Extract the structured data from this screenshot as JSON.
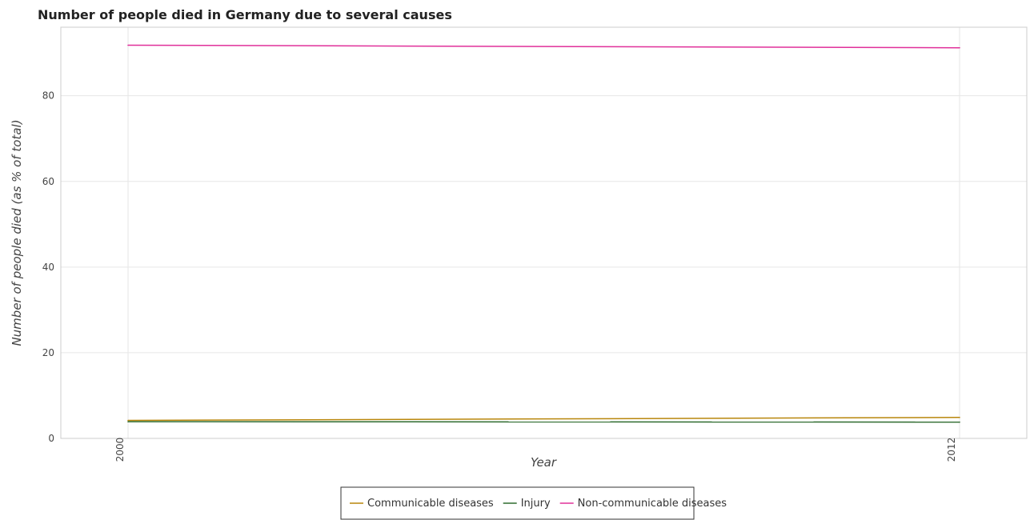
{
  "chart_data": {
    "type": "line",
    "title": "Number of people died in Germany due to several causes",
    "xlabel": "Year",
    "ylabel": "Number of people died (as % of total)",
    "x": [
      "2000",
      "2012"
    ],
    "yticks": [
      "0",
      "20",
      "40",
      "60",
      "80"
    ],
    "ylim": [
      0,
      96
    ],
    "grid": true,
    "legend_position": "bottom-center",
    "series": [
      {
        "name": "Communicable diseases",
        "color": "#b8860b",
        "values": [
          4.2,
          4.9
        ]
      },
      {
        "name": "Injury",
        "color": "#2e6b2e",
        "values": [
          3.9,
          3.8
        ]
      },
      {
        "name": "Non-communicable diseases",
        "color": "#e0309a",
        "values": [
          91.8,
          91.2
        ]
      }
    ]
  }
}
